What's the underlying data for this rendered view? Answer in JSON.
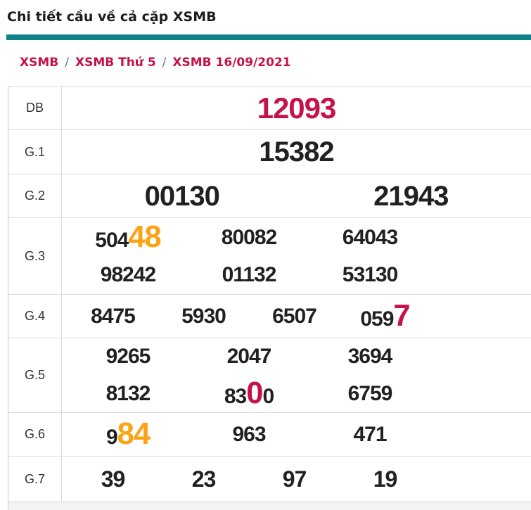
{
  "header": {
    "title": "Chi tiết cầu về cả cặp XSMB"
  },
  "breadcrumb": {
    "separator": "/",
    "items": [
      {
        "label": "XSMB"
      },
      {
        "label": "XSMB Thứ 5"
      },
      {
        "label": "XSMB 16/09/2021"
      }
    ]
  },
  "colors": {
    "accent": "#10828c",
    "crimson": "#c51249",
    "orange": "#fba315",
    "number_black": "#212121",
    "border_gray": "#dcdcdc"
  },
  "results_table": {
    "rows": [
      {
        "label": "DB",
        "size": "xl",
        "cols": 1,
        "region": "full",
        "lines": [
          [
            [
              {
                "t": "12093",
                "c": "red"
              }
            ]
          ]
        ]
      },
      {
        "label": "G.1",
        "size": "lg",
        "cols": 1,
        "region": "full",
        "lines": [
          [
            [
              {
                "t": "15382"
              }
            ]
          ]
        ]
      },
      {
        "label": "G.2",
        "size": "lg",
        "cols": 2,
        "region": "full",
        "lines": [
          [
            [
              {
                "t": "00130"
              }
            ],
            [
              {
                "t": "21943"
              }
            ]
          ]
        ]
      },
      {
        "label": "G.3",
        "size": "md",
        "cols": 3,
        "region": "left",
        "lines": [
          [
            [
              {
                "t": "504"
              },
              {
                "t": "48",
                "c": "orange",
                "big": true
              }
            ],
            [
              {
                "t": "80082"
              }
            ],
            [
              {
                "t": "64043"
              }
            ]
          ],
          [
            [
              {
                "t": "98242"
              }
            ],
            [
              {
                "t": "01132"
              }
            ],
            [
              {
                "t": "53130"
              }
            ]
          ]
        ]
      },
      {
        "label": "G.4",
        "size": "md",
        "cols": 4,
        "region": "left",
        "lines": [
          [
            [
              {
                "t": "8475"
              }
            ],
            [
              {
                "t": "5930"
              }
            ],
            [
              {
                "t": "6507"
              }
            ],
            [
              {
                "t": "059"
              },
              {
                "t": "7",
                "c": "red",
                "big": true
              }
            ]
          ]
        ]
      },
      {
        "label": "G.5",
        "size": "md",
        "cols": 3,
        "region": "left",
        "lines": [
          [
            [
              {
                "t": "9265"
              }
            ],
            [
              {
                "t": "2047"
              }
            ],
            [
              {
                "t": "3694"
              }
            ]
          ],
          [
            [
              {
                "t": "8132"
              }
            ],
            [
              {
                "t": "83"
              },
              {
                "t": "0",
                "c": "red",
                "big": true
              },
              {
                "t": "0"
              }
            ],
            [
              {
                "t": "6759"
              }
            ]
          ]
        ]
      },
      {
        "label": "G.6",
        "size": "md",
        "cols": 3,
        "region": "left",
        "lines": [
          [
            [
              {
                "t": "9"
              },
              {
                "t": "84",
                "c": "orange",
                "big": true
              }
            ],
            [
              {
                "t": "963"
              }
            ],
            [
              {
                "t": "471"
              }
            ]
          ]
        ]
      },
      {
        "label": "G.7",
        "size": "md7",
        "cols": 4,
        "region": "left",
        "lines": [
          [
            [
              {
                "t": "39"
              }
            ],
            [
              {
                "t": "23"
              }
            ],
            [
              {
                "t": "97"
              }
            ],
            [
              {
                "t": "19"
              }
            ]
          ]
        ]
      }
    ]
  }
}
